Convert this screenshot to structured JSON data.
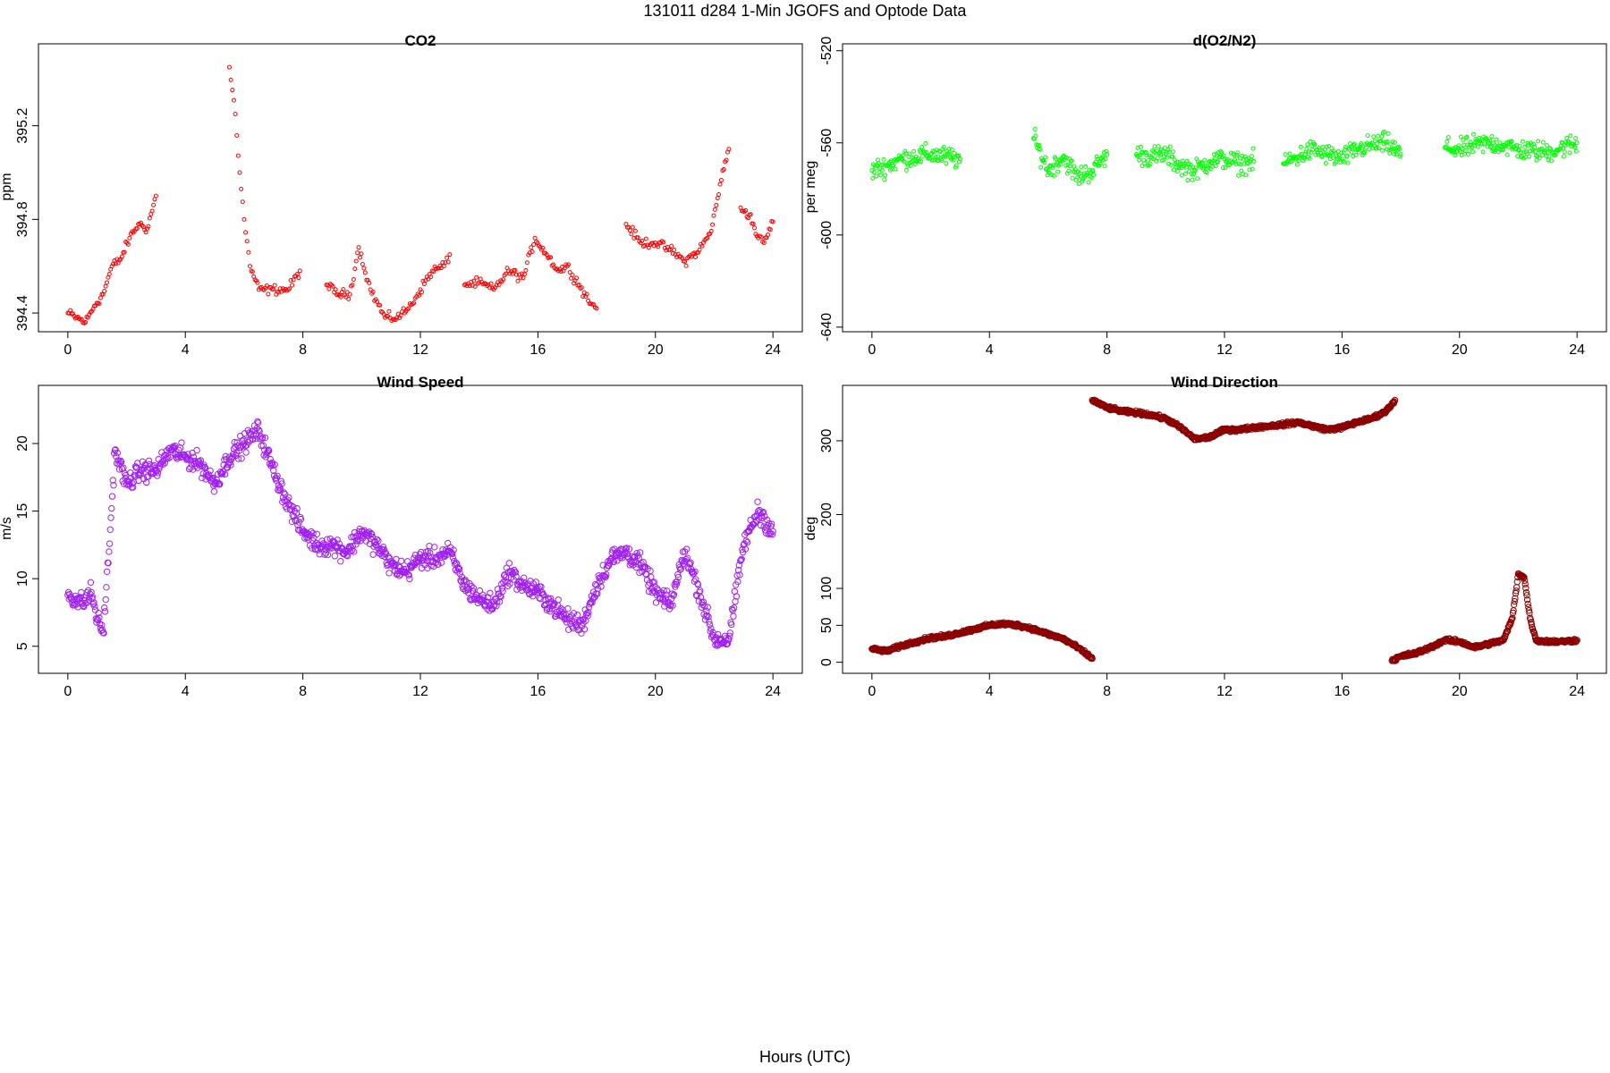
{
  "figure": {
    "title": "131011   d284   1-Min  JGOFS and Optode Data",
    "xlabel": "Hours (UTC)"
  },
  "chart_data": [
    {
      "id": "co2",
      "type": "scatter",
      "title": "CO2",
      "xlabel": "",
      "ylabel": "ppm",
      "xlim": [
        -1,
        25
      ],
      "ylim": [
        394.32,
        395.55
      ],
      "xticks": [
        "0",
        "4",
        "8",
        "12",
        "16",
        "20",
        "24"
      ],
      "yticks": [
        "394.4",
        "394.8",
        "395.2"
      ],
      "grid": false,
      "color": "#ff0000",
      "marker": "open-circle",
      "series": [
        {
          "segments": [
            {
              "x": [
                0,
                0.3,
                0.6,
                0.9,
                1.2,
                1.5,
                1.8,
                2.1,
                2.4,
                2.7,
                3.0
              ],
              "y": [
                394.4,
                394.38,
                394.36,
                394.43,
                394.48,
                394.6,
                394.63,
                394.72,
                394.78,
                394.76,
                394.9
              ]
            },
            {
              "x": [
                5.5,
                5.7,
                5.85,
                6.0,
                6.2,
                6.5,
                7.0,
                7.5,
                7.9
              ],
              "y": [
                395.45,
                395.25,
                395.0,
                394.8,
                394.6,
                394.5,
                394.5,
                394.5,
                394.58
              ]
            },
            {
              "x": [
                8.8,
                9.2,
                9.6,
                9.9,
                10.3,
                10.8,
                11.2,
                11.6,
                12.0,
                12.4,
                12.8,
                13.0
              ],
              "y": [
                394.52,
                394.48,
                394.48,
                394.68,
                394.5,
                394.38,
                394.38,
                394.42,
                394.5,
                394.58,
                394.6,
                394.65
              ]
            },
            {
              "x": [
                13.5,
                14.0,
                14.5,
                15.0,
                15.5,
                15.9,
                16.3,
                16.7,
                17.0,
                17.4,
                17.8,
                18.0
              ],
              "y": [
                394.52,
                394.53,
                394.5,
                394.58,
                394.55,
                394.72,
                394.65,
                394.58,
                394.6,
                394.52,
                394.44,
                394.42
              ]
            },
            {
              "x": [
                19.0,
                19.5,
                20.0,
                20.5,
                21.0,
                21.5,
                21.9,
                22.2,
                22.5
              ],
              "y": [
                394.78,
                394.7,
                394.7,
                394.67,
                394.62,
                394.67,
                394.75,
                394.95,
                395.1
              ]
            },
            {
              "x": [
                22.9,
                23.2,
                23.5,
                23.7,
                24.0
              ],
              "y": [
                394.85,
                394.82,
                394.72,
                394.7,
                394.79
              ]
            }
          ]
        }
      ]
    },
    {
      "id": "o2n2",
      "type": "scatter",
      "title": "d(O2/N2)",
      "xlabel": "",
      "ylabel": "per meg",
      "xlim": [
        -1,
        25
      ],
      "ylim": [
        -642,
        -517
      ],
      "xticks": [
        "0",
        "4",
        "8",
        "12",
        "16",
        "20",
        "24"
      ],
      "yticks": [
        "-520",
        "-560",
        "-600",
        "-640"
      ],
      "grid": false,
      "color": "#00ff00",
      "marker": "open-circle",
      "series": [
        {
          "segments": [
            {
              "x": [
                0,
                0.5,
                1.0,
                1.5,
                2.0,
                2.5,
                3.0
              ],
              "y": [
                -572,
                -570,
                -567,
                -566,
                -565,
                -566,
                -567
              ]
            },
            {
              "x": [
                5.5,
                6.0,
                6.5,
                7.0,
                7.5,
                8.0
              ],
              "y": [
                -558,
                -572,
                -566,
                -575,
                -572,
                -565
              ]
            },
            {
              "x": [
                9.0,
                9.5,
                10.0,
                10.5,
                11.0,
                11.5,
                12.0,
                12.5,
                13.0
              ],
              "y": [
                -565,
                -566,
                -565,
                -570,
                -572,
                -568,
                -567,
                -569,
                -568
              ]
            },
            {
              "x": [
                14.0,
                14.5,
                15.0,
                15.5,
                16.0,
                16.5,
                17.0,
                17.5,
                18.0
              ],
              "y": [
                -569,
                -566,
                -563,
                -565,
                -567,
                -563,
                -561,
                -560,
                -565
              ]
            },
            {
              "x": [
                19.5,
                20.0,
                20.5,
                21.0,
                21.5,
                22.0,
                23.0,
                24.0
              ],
              "y": [
                -562,
                -563,
                -561,
                -560,
                -561,
                -563,
                -564,
                -560
              ]
            }
          ]
        }
      ]
    },
    {
      "id": "wind-speed",
      "type": "scatter",
      "title": "Wind Speed",
      "xlabel": "",
      "ylabel": "m/s",
      "xlim": [
        -1,
        25
      ],
      "ylim": [
        3,
        24.3
      ],
      "xticks": [
        "0",
        "4",
        "8",
        "12",
        "16",
        "20",
        "24"
      ],
      "yticks": [
        "5",
        "10",
        "15",
        "20"
      ],
      "grid": false,
      "color": "#a020f0",
      "marker": "open-circle",
      "series": [
        {
          "segments": [
            {
              "x": [
                0,
                0.5,
                0.8,
                1.0,
                1.2,
                1.4,
                1.6,
                2.0,
                2.5,
                3.0,
                3.5,
                4.0,
                4.5,
                5.0,
                5.5,
                6.0,
                6.5,
                7.0,
                7.5,
                8.0,
                8.5,
                9.0,
                9.5,
                10.0,
                10.5,
                11.0,
                11.5,
                12.0,
                12.5,
                13.0,
                13.5,
                14.0,
                14.5,
                15.0,
                15.5,
                16.0,
                16.5,
                17.0,
                17.5,
                18.0,
                18.5,
                19.0,
                19.5,
                20.0,
                20.5,
                21.0,
                21.5,
                22.0,
                22.5,
                23.0,
                23.5,
                24.0
              ],
              "y": [
                8.8,
                8.2,
                9.0,
                7.0,
                6.0,
                12.0,
                19.5,
                17.0,
                18.0,
                18.0,
                19.5,
                19.0,
                18.5,
                17.0,
                19.0,
                20.0,
                21.0,
                18.0,
                15.5,
                13.5,
                12.5,
                12.5,
                12.0,
                13.5,
                12.5,
                11.0,
                10.5,
                11.5,
                11.5,
                12.0,
                9.5,
                8.5,
                8.0,
                10.5,
                9.5,
                9.0,
                8.0,
                7.0,
                6.5,
                9.5,
                11.5,
                12.0,
                11.0,
                9.0,
                8.0,
                12.0,
                9.0,
                5.5,
                5.5,
                12.5,
                15.0,
                13.5
              ]
            }
          ]
        }
      ]
    },
    {
      "id": "wind-direction",
      "type": "scatter",
      "title": "Wind Direction",
      "xlabel": "",
      "ylabel": "deg",
      "xlim": [
        -1,
        25
      ],
      "ylim": [
        -15,
        375
      ],
      "xticks": [
        "0",
        "4",
        "8",
        "12",
        "16",
        "20",
        "24"
      ],
      "yticks": [
        "0",
        "50",
        "100",
        "200",
        "300"
      ],
      "grid": false,
      "color": "#8b0000",
      "marker": "open-circle",
      "series": [
        {
          "segments": [
            {
              "x": [
                0,
                0.5,
                1.0,
                1.5,
                2.0,
                2.5,
                3.0,
                3.5,
                4.0,
                4.5,
                5.0,
                5.5,
                6.0,
                6.5,
                7.0,
                7.5
              ],
              "y": [
                18,
                15,
                22,
                28,
                33,
                35,
                40,
                45,
                50,
                52,
                50,
                45,
                38,
                32,
                20,
                5
              ]
            },
            {
              "x": [
                7.5,
                8.0,
                8.5,
                9.0,
                9.5,
                10.0,
                10.5,
                11.0,
                11.5,
                12.0,
                12.5,
                13.0,
                13.5,
                14.0,
                14.5,
                15.0,
                15.5,
                16.0,
                16.5,
                17.0,
                17.5,
                17.8
              ],
              "y": [
                355,
                345,
                340,
                338,
                335,
                330,
                318,
                302,
                305,
                315,
                315,
                318,
                320,
                322,
                325,
                320,
                315,
                318,
                325,
                330,
                340,
                355
              ]
            },
            {
              "x": [
                17.7,
                18.0,
                18.5,
                19.0,
                19.5,
                20.0,
                20.5,
                21.0,
                21.5,
                21.8,
                22.0,
                22.2,
                22.4,
                22.6,
                23.0,
                23.5,
                24.0
              ],
              "y": [
                2,
                8,
                12,
                20,
                30,
                28,
                20,
                25,
                30,
                60,
                120,
                115,
                60,
                30,
                28,
                28,
                30
              ]
            }
          ]
        }
      ]
    }
  ]
}
